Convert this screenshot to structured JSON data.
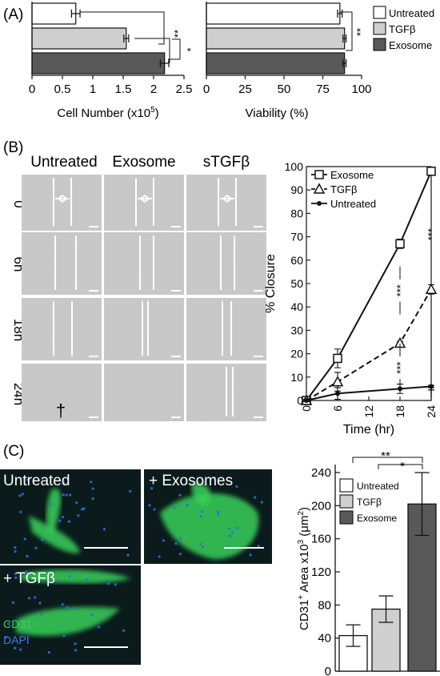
{
  "panels": {
    "a": "(A)",
    "b": "(B)",
    "c": "(C)"
  },
  "colors": {
    "untreated": "#ffffff",
    "tgfb": "#cfcfcf",
    "exosome": "#595959",
    "micro_bg": "#c9c9c9",
    "fluor_bg": "#0b1b1c",
    "cd31_green": "#39d05a",
    "dapi_blue": "#2d6de0"
  },
  "panel_a_legend": [
    {
      "label": "Untreated",
      "color": "#ffffff"
    },
    {
      "label": "TGFβ",
      "color": "#cfcfcf"
    },
    {
      "label": "Exosome",
      "color": "#595959"
    }
  ],
  "panel_b_images": {
    "col_labels": [
      "Untreated",
      "Exosome",
      "sTGFβ"
    ],
    "row_labels": [
      "0",
      "6h",
      "18h",
      "24h"
    ],
    "dagger": "†"
  },
  "panel_c_images": {
    "labels": [
      "Untreated",
      "+ Exosomes",
      "+ TGFβ"
    ],
    "stain_cd31": "CD31",
    "stain_dapi": "DAPI"
  },
  "chart_data": [
    {
      "type": "bar",
      "orientation": "horizontal",
      "categories": [
        "Untreated",
        "TGFβ",
        "Exosome"
      ],
      "values": [
        0.72,
        1.55,
        2.18
      ],
      "errors": [
        0.07,
        0.04,
        0.07
      ],
      "xlabel": "Cell Number (x10",
      "xlabel_sup": "5",
      "xlabel_end": ")",
      "xlim": [
        0,
        2.5
      ],
      "xticks": [
        "0",
        "0.5",
        "1",
        "1.5",
        "2",
        "2.5"
      ],
      "significance": [
        "**",
        "*"
      ]
    },
    {
      "type": "bar",
      "orientation": "horizontal",
      "categories": [
        "Untreated",
        "TGFβ",
        "Exosome"
      ],
      "values": [
        86,
        89,
        89
      ],
      "errors": [
        1.5,
        1.0,
        1.0
      ],
      "xlabel": "Viability (%)",
      "xlim": [
        0,
        100
      ],
      "xticks": [
        "0",
        "25",
        "50",
        "75",
        "100"
      ],
      "significance": [
        "**"
      ]
    },
    {
      "type": "line",
      "x": [
        0,
        6,
        18,
        24
      ],
      "series": [
        {
          "name": "Exosome",
          "marker": "square",
          "values": [
            0,
            18,
            67,
            98
          ],
          "errors": [
            0.5,
            4,
            2,
            0.5
          ]
        },
        {
          "name": "TGFβ",
          "marker": "triangle",
          "dashed": true,
          "values": [
            0,
            8,
            24.5,
            47.5
          ],
          "errors": [
            0.5,
            4,
            0.8,
            2
          ]
        },
        {
          "name": "Untreated",
          "marker": "circle",
          "values": [
            0,
            3,
            5,
            6
          ],
          "errors": [
            0.5,
            2.5,
            2,
            0.5
          ]
        }
      ],
      "xlabel": "Time (hr)",
      "ylabel": "% Closure",
      "xlim": [
        0,
        24
      ],
      "ylim": [
        0,
        100
      ],
      "xticks": [
        "0",
        "6",
        "12",
        "18",
        "24"
      ],
      "yticks": [
        "0",
        "10",
        "20",
        "30",
        "40",
        "50",
        "60",
        "70",
        "80",
        "90",
        "100"
      ],
      "significance": [
        "***",
        "***",
        "***"
      ],
      "dagger": "†"
    },
    {
      "type": "bar",
      "categories": [
        "Untreated",
        "TGFβ",
        "Exosome"
      ],
      "values": [
        43,
        75,
        202
      ],
      "errors": [
        13,
        16,
        38
      ],
      "ylabel": "CD31",
      "ylabel_sup1": "+",
      "ylabel_mid": " Area x10",
      "ylabel_sup2": "3",
      "ylabel_unit": " (μm",
      "ylabel_sup3": "2",
      "ylabel_end": ")",
      "ylim": [
        0,
        240
      ],
      "yticks": [
        "0",
        "40",
        "80",
        "120",
        "160",
        "200",
        "240"
      ],
      "significance": [
        "**",
        "*"
      ]
    }
  ]
}
